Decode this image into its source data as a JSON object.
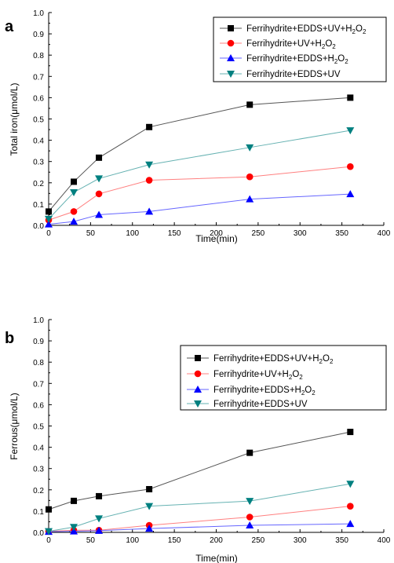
{
  "chart_data": [
    {
      "type": "line",
      "panel_label": "a",
      "xlabel": "Time(min)",
      "ylabel": "Total iron(μmol/L)",
      "xlim": [
        0,
        400
      ],
      "ylim": [
        0,
        1.0
      ],
      "xticks": [
        0,
        50,
        100,
        150,
        200,
        250,
        300,
        350,
        400
      ],
      "yticks": [
        0.0,
        0.1,
        0.2,
        0.3,
        0.4,
        0.5,
        0.6,
        0.7,
        0.8,
        0.9,
        1.0
      ],
      "legend_position": "top-right",
      "grid": false,
      "x": [
        0,
        30,
        60,
        120,
        240,
        360
      ],
      "series": [
        {
          "name": "Ferrihydrite+EDDS+UV+H2O2",
          "legend_main": "Ferrihydrite+EDDS+UV+H",
          "legend_sub": "2",
          "legend_tail": "O",
          "legend_sub2": "2",
          "marker": "square",
          "color": "#000000",
          "line_color": "#555555",
          "values": [
            0.065,
            0.205,
            0.318,
            0.462,
            0.567,
            0.6
          ]
        },
        {
          "name": "Ferrihydrite+UV+H2O2",
          "legend_main": "Ferrihydrite+UV+H",
          "legend_sub": "2",
          "legend_tail": "O",
          "legend_sub2": "2",
          "marker": "circle",
          "color": "#ff0000",
          "line_color": "#ff8080",
          "values": [
            0.025,
            0.065,
            0.148,
            0.212,
            0.228,
            0.276
          ]
        },
        {
          "name": "Ferrihydrite+EDDS+H2O2",
          "legend_main": "Ferrihydrite+EDDS+H",
          "legend_sub": "2",
          "legend_tail": "O",
          "legend_sub2": "2",
          "marker": "triangle-up",
          "color": "#0000ff",
          "line_color": "#6666ff",
          "values": [
            0.005,
            0.018,
            0.05,
            0.065,
            0.123,
            0.147
          ]
        },
        {
          "name": "Ferrihydrite+EDDS+UV",
          "legend_main": "Ferrihydrite+EDDS+UV",
          "legend_sub": "",
          "legend_tail": "",
          "legend_sub2": "",
          "marker": "triangle-down",
          "color": "#008080",
          "line_color": "#66b2b2",
          "values": [
            0.03,
            0.155,
            0.22,
            0.285,
            0.366,
            0.446
          ]
        }
      ]
    },
    {
      "type": "line",
      "panel_label": "b",
      "xlabel": "Time(min)",
      "ylabel": "Ferrous(μmol/L)",
      "xlim": [
        0,
        400
      ],
      "ylim": [
        0,
        1.0
      ],
      "xticks": [
        0,
        50,
        100,
        150,
        200,
        250,
        300,
        350,
        400
      ],
      "yticks": [
        0.0,
        0.1,
        0.2,
        0.3,
        0.4,
        0.5,
        0.6,
        0.7,
        0.8,
        0.9,
        1.0
      ],
      "legend_position": "top-right",
      "grid": false,
      "x": [
        0,
        30,
        60,
        120,
        240,
        360
      ],
      "series": [
        {
          "name": "Ferrihydrite+EDDS+UV+H2O2",
          "legend_main": "Ferrihydrite+EDDS+UV+H",
          "legend_sub": "2",
          "legend_tail": "O",
          "legend_sub2": "2",
          "marker": "square",
          "color": "#000000",
          "line_color": "#555555",
          "values": [
            0.108,
            0.148,
            0.17,
            0.203,
            0.374,
            0.472
          ]
        },
        {
          "name": "Ferrihydrite+UV+H2O2",
          "legend_main": "Ferrihydrite+UV+H",
          "legend_sub": "2",
          "legend_tail": "O",
          "legend_sub2": "2",
          "marker": "circle",
          "color": "#ff0000",
          "line_color": "#ff8080",
          "values": [
            0.005,
            0.01,
            0.01,
            0.033,
            0.072,
            0.123
          ]
        },
        {
          "name": "Ferrihydrite+EDDS+H2O2",
          "legend_main": "Ferrihydrite+EDDS+H",
          "legend_sub": "2",
          "legend_tail": "O",
          "legend_sub2": "2",
          "marker": "triangle-up",
          "color": "#0000ff",
          "line_color": "#6666ff",
          "values": [
            0.003,
            0.005,
            0.008,
            0.018,
            0.033,
            0.04
          ]
        },
        {
          "name": "Ferrihydrite+EDDS+UV",
          "legend_main": "Ferrihydrite+EDDS+UV",
          "legend_sub": "",
          "legend_tail": "",
          "legend_sub2": "",
          "marker": "triangle-down",
          "color": "#008080",
          "line_color": "#66b2b2",
          "values": [
            0.005,
            0.025,
            0.065,
            0.123,
            0.147,
            0.228
          ]
        }
      ]
    }
  ]
}
